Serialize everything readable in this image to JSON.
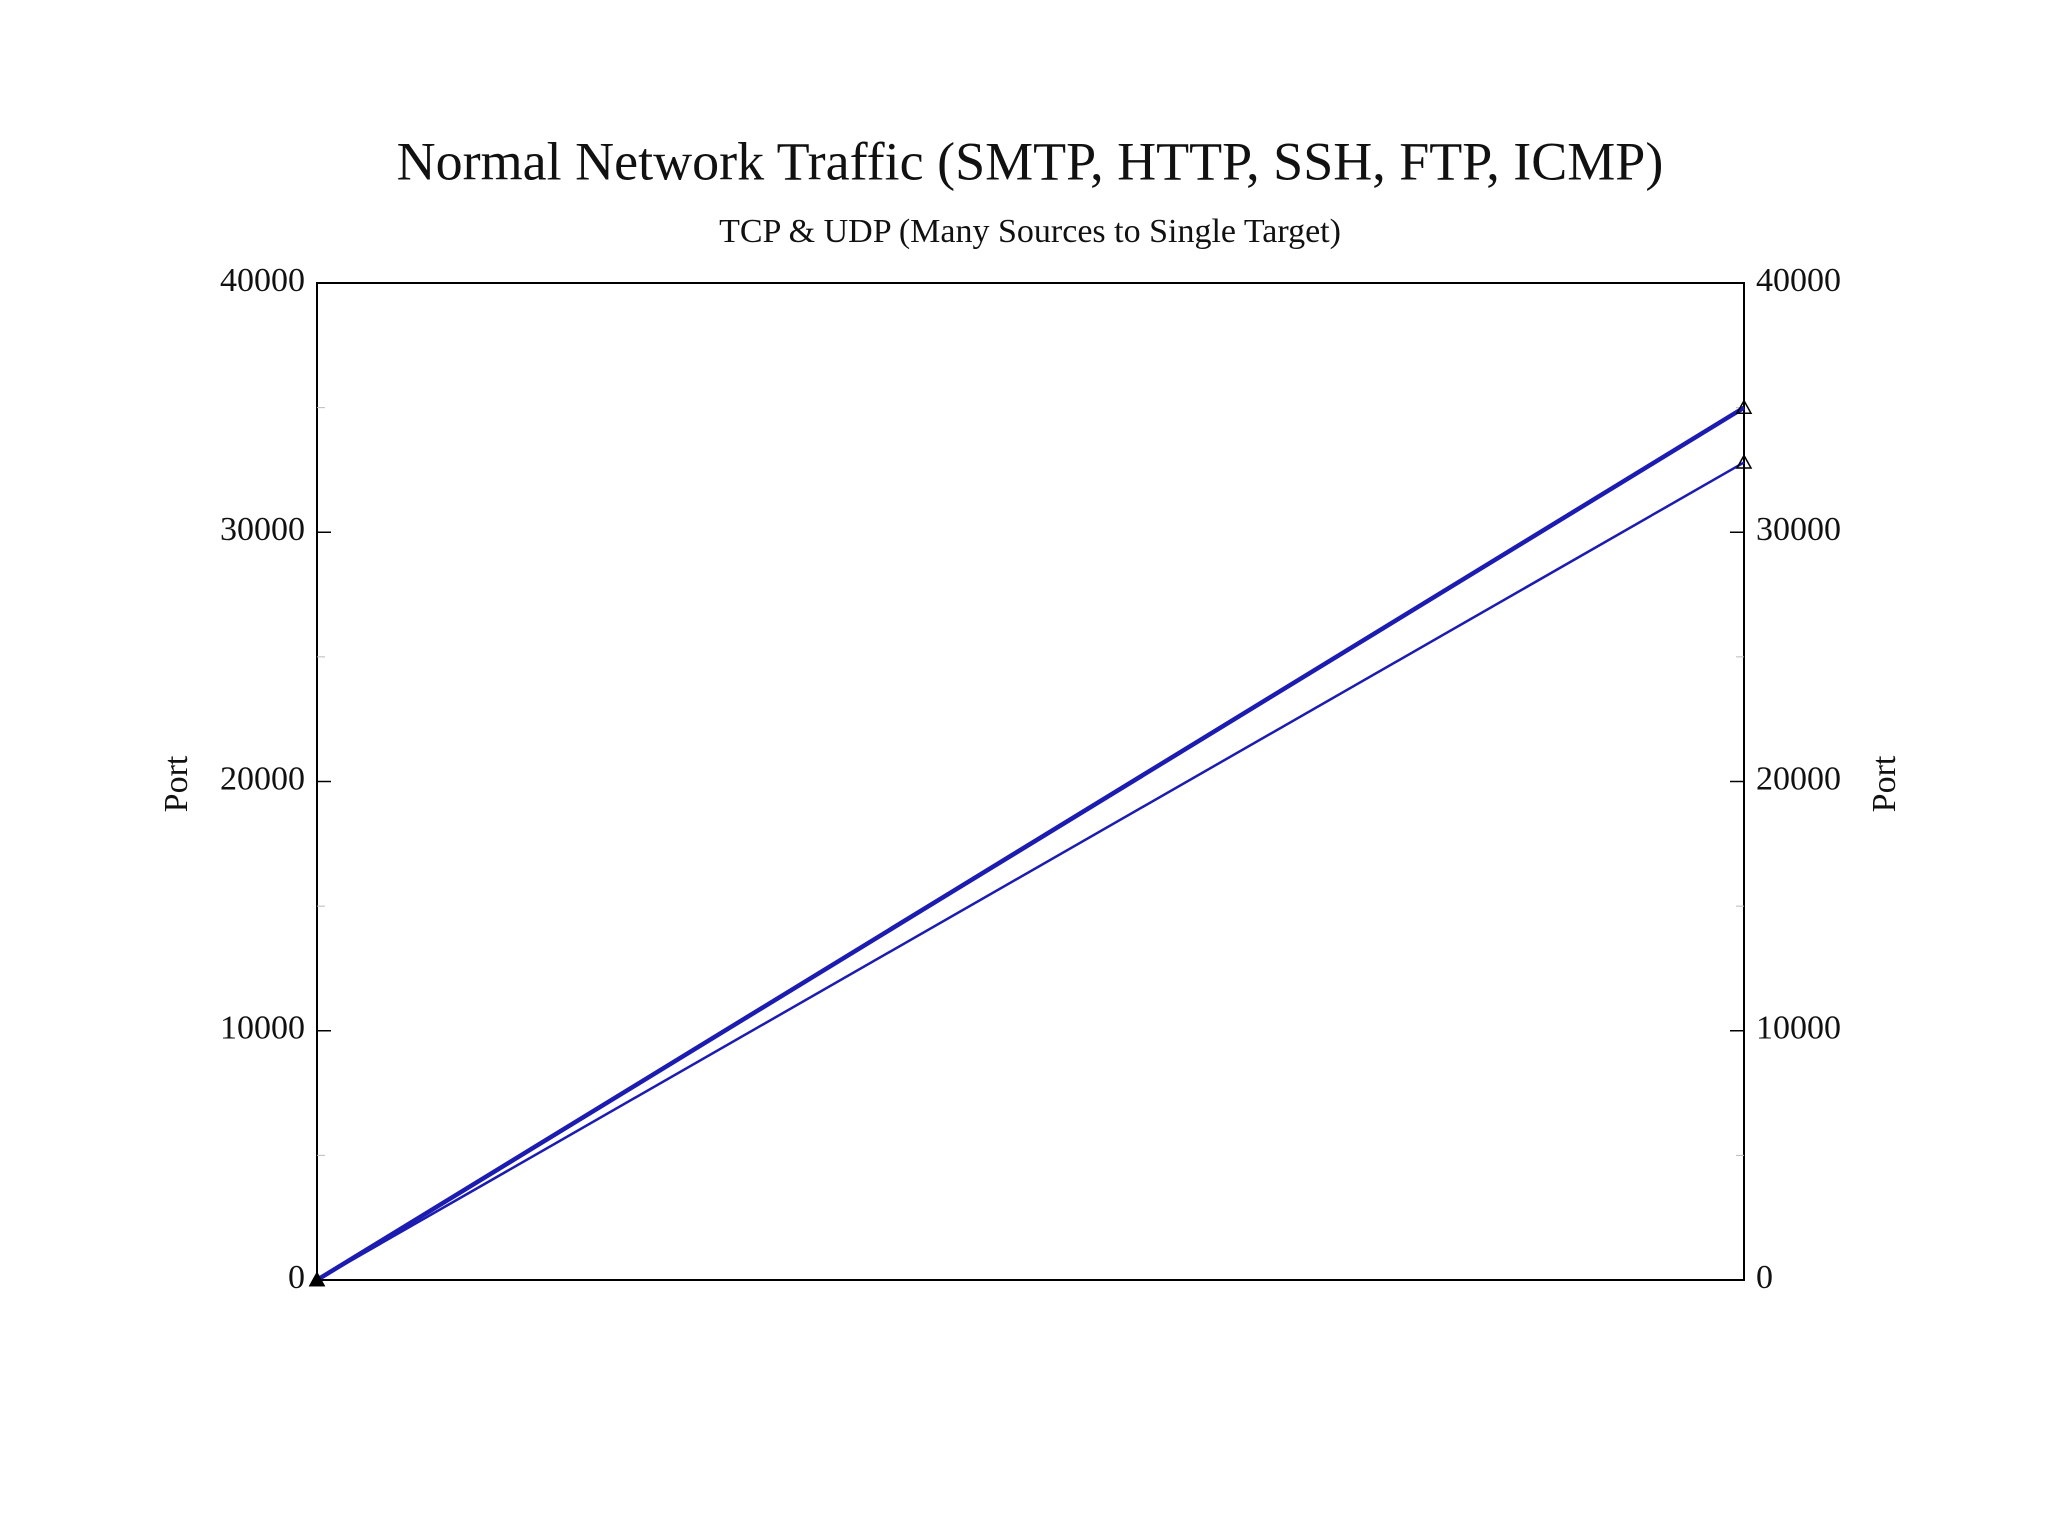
{
  "chart_data": {
    "type": "parallel",
    "title": "Normal Network Traffic (SMTP, HTTP, SSH, FTP, ICMP)",
    "subtitle": "TCP & UDP (Many Sources to Single Target)",
    "ylabel": "Port",
    "y2label": "Port",
    "ylim": [
      0,
      40000
    ],
    "yticks": [
      0,
      10000,
      20000,
      30000,
      40000
    ],
    "y2lim": [
      0,
      40000
    ],
    "y2ticks": [
      0,
      10000,
      20000,
      30000,
      40000
    ],
    "yminorticks": [
      5000,
      15000,
      25000,
      35000
    ],
    "series": [
      {
        "color": "#1c1cb0",
        "values": [
          0,
          35000
        ]
      },
      {
        "color": "#1c1cb0",
        "values": [
          0,
          32800
        ]
      }
    ]
  }
}
